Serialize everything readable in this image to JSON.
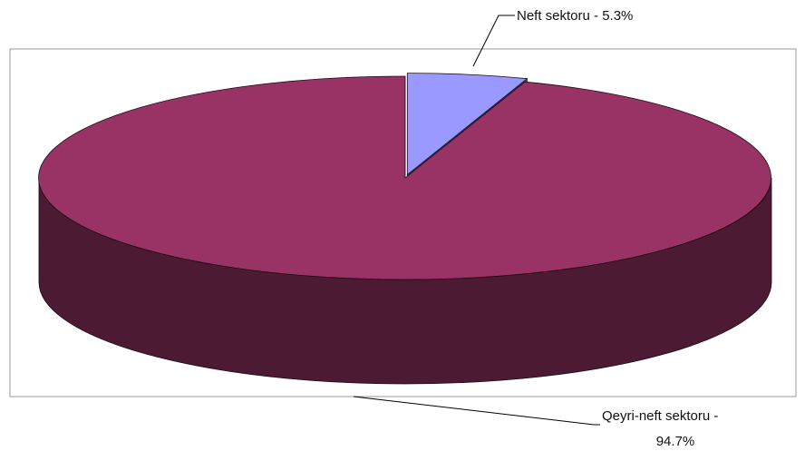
{
  "chart_data": {
    "type": "pie",
    "style": "3d-exploded",
    "slices": [
      {
        "label": "Neft sektoru",
        "value": 5.3,
        "label_text": "Neft sektoru - 5.3%",
        "color_top": "#9999ff",
        "color_side": "#4c4c80"
      },
      {
        "label": "Qeyri-neft sektoru",
        "value": 94.7,
        "label_lines": [
          "Qeyri-neft sektoru -",
          "94.7%"
        ],
        "color_top": "#993366",
        "color_side": "#4d1a33"
      }
    ],
    "legend": "none",
    "plot_border": true
  }
}
